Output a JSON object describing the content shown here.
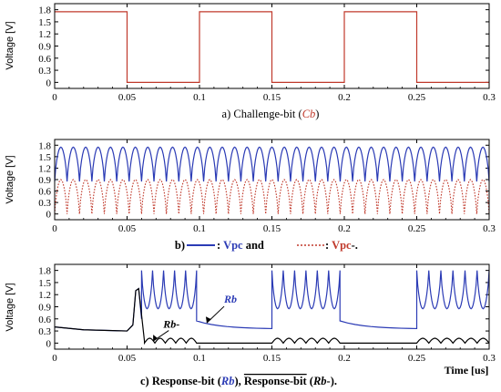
{
  "chart_data": [
    {
      "type": "line",
      "ylabel": "Voltage [V]",
      "xlim": [
        0,
        0.3
      ],
      "ylim": [
        -0.15,
        1.95
      ],
      "xticks": [
        "0",
        "0.05",
        "0.1",
        "0.15",
        "0.2",
        "0.25",
        "0.3"
      ],
      "yticks": [
        "0",
        "0.3",
        "0.6",
        "0.9",
        "1.2",
        "1.5",
        "1.8"
      ],
      "caption": {
        "prefix": "a) Challenge-bit (",
        "symbol": "Cb",
        "suffix": ")"
      },
      "series": [
        {
          "color": "#c0392b",
          "style": "square",
          "period": 0.1,
          "high": 1.75,
          "low": 0,
          "x": [
            0,
            0.05,
            0.05,
            0.1,
            0.1,
            0.15,
            0.15,
            0.2,
            0.2,
            0.25,
            0.25,
            0.3
          ],
          "y": [
            1.75,
            1.75,
            0,
            0,
            1.75,
            1.75,
            0,
            0,
            1.75,
            1.75,
            0,
            0
          ]
        }
      ]
    },
    {
      "type": "line",
      "ylabel": "Voltage [V]",
      "xlim": [
        0,
        0.3
      ],
      "ylim": [
        -0.15,
        1.95
      ],
      "xticks": [
        "0",
        "0.05",
        "0.1",
        "0.15",
        "0.2",
        "0.25",
        "0.3"
      ],
      "yticks": [
        "0",
        "0.3",
        "0.6",
        "0.9",
        "1.2",
        "1.5",
        "1.8"
      ],
      "caption": {
        "prefix": "b) ",
        "seg1": ": ",
        "name1": "Vpc",
        "seg2": " and ",
        "seg3": " : ",
        "name2": "Vpc",
        "suffix": "-."
      },
      "series": [
        {
          "color": "#2b3bb5",
          "style": "solid",
          "cycles": 35,
          "high": 1.75,
          "low": 0.85
        },
        {
          "color": "#c0392b",
          "style": "dotted",
          "cycles": 35,
          "high": 0.9,
          "low": 0
        }
      ]
    },
    {
      "type": "line",
      "ylabel": "Voltage [V]",
      "xlabel": "Time [us]",
      "xlim": [
        0,
        0.3
      ],
      "ylim": [
        -0.15,
        1.95
      ],
      "xticks": [
        "0",
        "0.05",
        "0.1",
        "0.15",
        "0.2",
        "0.25",
        "0.3"
      ],
      "yticks": [
        "0",
        "0.3",
        "0.6",
        "0.9",
        "1.2",
        "1.5",
        "1.8"
      ],
      "caption": {
        "prefix": "c) Response-bit (",
        "sym1": "Rb",
        "mid": "), ",
        "over": "Response-bit",
        "mid2": " (",
        "sym2": "Rb",
        "suffix": "-)."
      },
      "annotations": [
        {
          "text": "Rb",
          "color": "#2b3bb5",
          "x": 0.117,
          "y": 1.0
        },
        {
          "text": "Rb-",
          "color": "#000000",
          "x": 0.075,
          "y": 0.38
        }
      ],
      "series": [
        {
          "name": "Rb",
          "color": "#2b3bb5",
          "segments": [
            {
              "kind": "points",
              "x": [
                0.0,
                0.02,
                0.05,
                0.054,
                0.056,
                0.058,
                0.06
              ],
              "y": [
                0.4,
                0.33,
                0.3,
                0.45,
                1.3,
                1.35,
                0.6
              ]
            },
            {
              "kind": "osc",
              "x0": 0.06,
              "x1": 0.098,
              "cycles": 5,
              "high": 1.8,
              "low": 0.85
            },
            {
              "kind": "decay",
              "x0": 0.098,
              "x1": 0.15,
              "y0": 0.55,
              "y1": 0.35
            },
            {
              "kind": "osc",
              "x0": 0.15,
              "x1": 0.197,
              "cycles": 6,
              "high": 1.8,
              "low": 0.85
            },
            {
              "kind": "decay",
              "x0": 0.197,
              "x1": 0.25,
              "y0": 0.55,
              "y1": 0.35
            },
            {
              "kind": "osc",
              "x0": 0.25,
              "x1": 0.3,
              "cycles": 6,
              "high": 1.8,
              "low": 0.85
            }
          ]
        },
        {
          "name": "Rb-",
          "color": "#000000",
          "segments": [
            {
              "kind": "points",
              "x": [
                0.0,
                0.02,
                0.05,
                0.054,
                0.056,
                0.058,
                0.062
              ],
              "y": [
                0.4,
                0.33,
                0.3,
                0.45,
                1.3,
                1.35,
                0.05
              ]
            },
            {
              "kind": "bumps",
              "x0": 0.062,
              "x1": 0.098,
              "count": 5,
              "base": 0.0,
              "amp": 0.12
            },
            {
              "kind": "flat",
              "x0": 0.098,
              "x1": 0.15,
              "y": 0.0
            },
            {
              "kind": "bumps",
              "x0": 0.15,
              "x1": 0.197,
              "count": 6,
              "base": 0.0,
              "amp": 0.12
            },
            {
              "kind": "flat",
              "x0": 0.197,
              "x1": 0.25,
              "y": 0.0
            },
            {
              "kind": "bumps",
              "x0": 0.25,
              "x1": 0.3,
              "count": 6,
              "base": 0.0,
              "amp": 0.12
            }
          ]
        }
      ]
    }
  ]
}
